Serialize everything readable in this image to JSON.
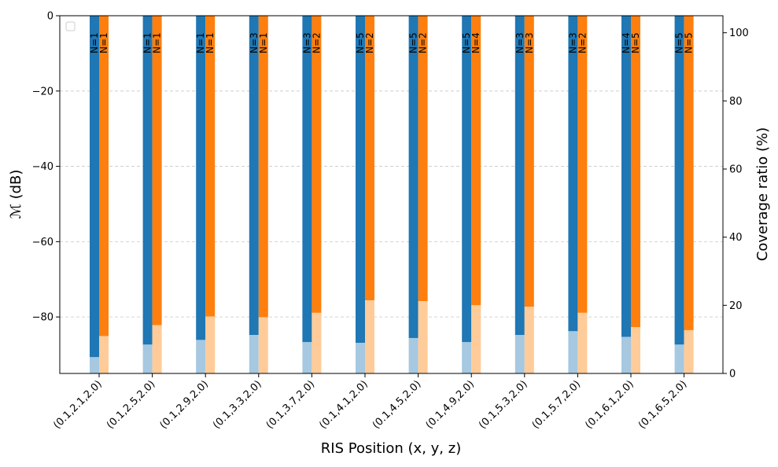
{
  "chart_data": {
    "type": "bar",
    "xlabel": "RIS Position (x, y, z)",
    "ylabel_left_prefix": "ℳ",
    "ylabel_left_suffix": " (dB)",
    "ylabel_right": "Coverage ratio (%)",
    "ylim_left": [
      -95,
      0
    ],
    "ylim_right": [
      0,
      105
    ],
    "yticks_left": [
      0,
      -20,
      -40,
      -60,
      -80
    ],
    "yticks_right": [
      0,
      20,
      40,
      60,
      80,
      100
    ],
    "categories": [
      "(0.1,2.1,2.0)",
      "(0.1,2.5,2.0)",
      "(0.1,2.9,2.0)",
      "(0.1,3.3,2.0)",
      "(0.1,3.7,2.0)",
      "(0.1,4.1,2.0)",
      "(0.1,4.5,2.0)",
      "(0.1,4.9,2.0)",
      "(0.1,5.3,2.0)",
      "(0.1,5.7,2.0)",
      "(0.1,6.1,2.0)",
      "(0.1,6.5,2.0)"
    ],
    "grid": true,
    "legend": "top-left (empty)",
    "series": [
      {
        "color": "#1f77b4",
        "light_color": "#a6c8e0",
        "metric_db": [
          -90.7,
          -87.4,
          -86.1,
          -84.8,
          -86.7,
          -86.9,
          -85.6,
          -86.7,
          -84.8,
          -83.8,
          -85.3,
          -87.4
        ],
        "coverage_pct": [
          4.8,
          8.5,
          9.8,
          11.3,
          9.2,
          9.0,
          10.4,
          9.2,
          11.3,
          12.4,
          10.7,
          8.5
        ],
        "n_labels": [
          "N=1",
          "N=1",
          "N=1",
          "N=3",
          "N=3",
          "N=5",
          "N=5",
          "N=5",
          "N=3",
          "N=3",
          "N=4",
          "N=5"
        ]
      },
      {
        "color": "#ff7f0e",
        "light_color": "#ffcc99",
        "metric_db": [
          -85.1,
          -82.2,
          -79.9,
          -80.1,
          -78.9,
          -75.6,
          -75.8,
          -76.9,
          -77.3,
          -78.9,
          -82.7,
          -83.5
        ],
        "coverage_pct": [
          10.9,
          14.1,
          16.7,
          16.4,
          17.8,
          21.4,
          21.2,
          20.0,
          19.6,
          17.8,
          13.6,
          12.7
        ],
        "n_labels": [
          "N=1",
          "N=1",
          "N=1",
          "N=1",
          "N=2",
          "N=2",
          "N=2",
          "N=4",
          "N=3",
          "N=2",
          "N=5",
          "N=5"
        ]
      }
    ]
  }
}
